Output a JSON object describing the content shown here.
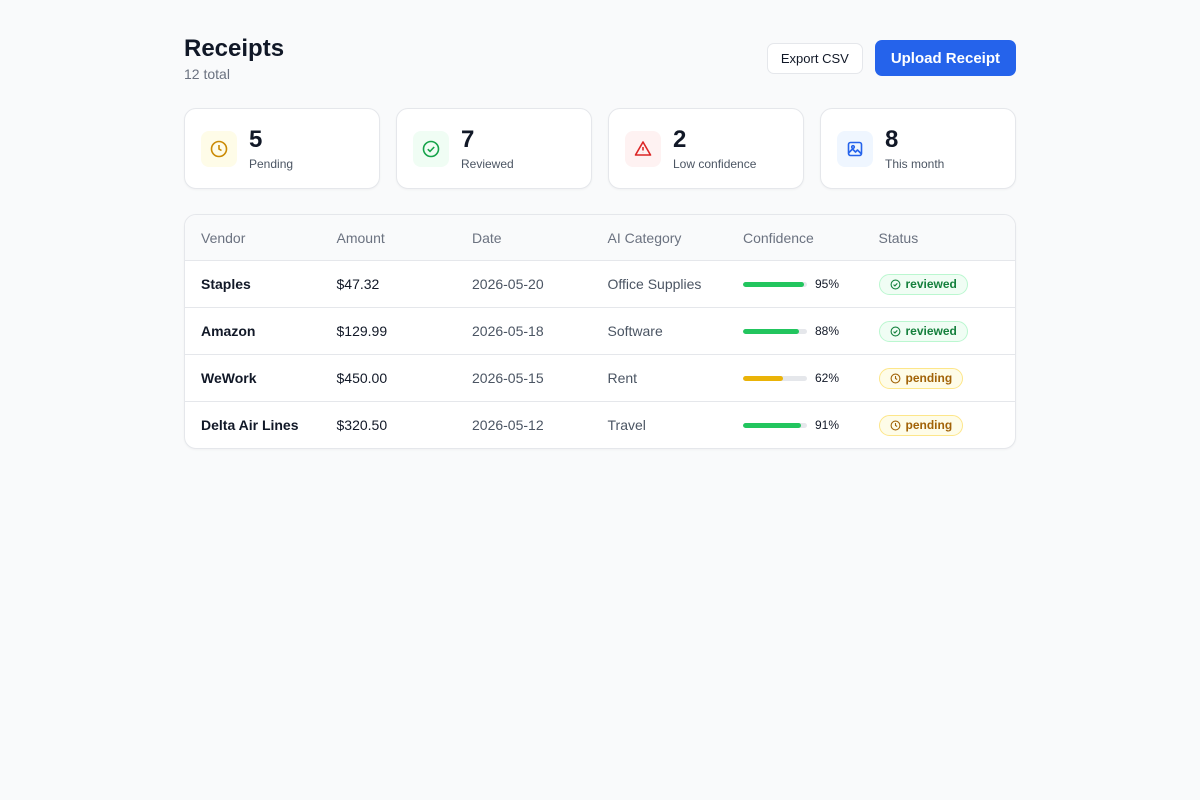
{
  "header": {
    "title": "Receipts",
    "subtitle": "12 total",
    "buttons": [
      "Export CSV",
      "Upload Receipt"
    ]
  },
  "stats": [
    {
      "value": 5,
      "label": "Pending"
    },
    {
      "value": 7,
      "label": "Reviewed"
    },
    {
      "value": 2,
      "label": "Low confidence"
    },
    {
      "value": 8,
      "label": "This month"
    }
  ],
  "table": {
    "columns": [
      "Vendor",
      "Amount",
      "Date",
      "AI Category",
      "Confidence",
      "Status"
    ],
    "rows": [
      {
        "vendor": "Staples",
        "amount": "$47.32",
        "date": "2026-05-20",
        "category": "Office Supplies",
        "confidence": {
          "value": 95,
          "label": "95%"
        },
        "status": "reviewed"
      },
      {
        "vendor": "Amazon",
        "amount": "$129.99",
        "date": "2026-05-18",
        "category": "Software",
        "confidence": {
          "value": 88,
          "label": "88%"
        },
        "status": "reviewed"
      },
      {
        "vendor": "WeWork",
        "amount": "$450.00",
        "date": "2026-05-15",
        "category": "Rent",
        "confidence": {
          "value": 62,
          "label": "62%"
        },
        "status": "pending"
      },
      {
        "vendor": "Delta Air Lines",
        "amount": "$320.50",
        "date": "2026-05-12",
        "category": "Travel",
        "confidence": {
          "value": 91,
          "label": "91%"
        },
        "status": "pending"
      }
    ]
  }
}
